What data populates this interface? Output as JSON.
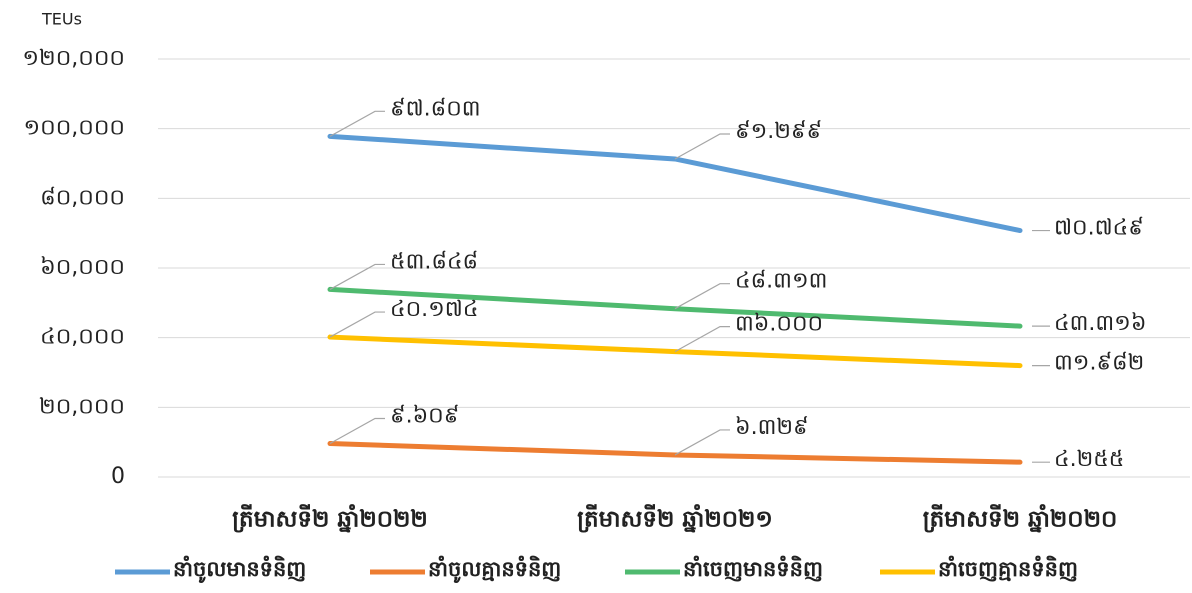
{
  "chart_data": {
    "type": "line",
    "y_label": "TEUs",
    "categories": [
      "ត្រីមាសទី២ ឆ្នាំ២០២២",
      "ត្រីមាសទី២ ឆ្នាំ២០២១",
      "ត្រីមាសទី២ ឆ្នាំ២០២០"
    ],
    "series": [
      {
        "name": "នាំចូលមានទំនិញ",
        "color": "#5b9bd5",
        "values": [
          97803,
          91299,
          70749
        ],
        "value_labels": [
          "៩៧.៨០៣",
          "៩១.២៩៩",
          "៧០.៧៤៩"
        ]
      },
      {
        "name": "នាំចូលគ្មានទំនិញ",
        "color": "#ed7d31",
        "values": [
          9609,
          6329,
          4255
        ],
        "value_labels": [
          "៩.៦០៩",
          "៦.៣២៩",
          "៤.២៥៥"
        ]
      },
      {
        "name": "នាំចេញមានទំនិញ",
        "color": "#4fba6f",
        "values": [
          53848,
          48313,
          43316
        ],
        "value_labels": [
          "៥៣.៨៤៨",
          "៤៨.៣១៣",
          "៤៣.៣១៦"
        ]
      },
      {
        "name": "នាំចេញគ្មានទំនិញ",
        "color": "#ffc000",
        "values": [
          40174,
          36000,
          31982
        ],
        "value_labels": [
          "៤០.១៧៤",
          "៣៦.០០០",
          "៣១.៩៨២"
        ]
      }
    ],
    "ylim": [
      0,
      120000
    ],
    "yticks": [
      {
        "value": 0,
        "label": "0"
      },
      {
        "value": 20000,
        "label": "២០,០០០"
      },
      {
        "value": 40000,
        "label": "៤០,០០០"
      },
      {
        "value": 60000,
        "label": "៦០,០០០"
      },
      {
        "value": 80000,
        "label": "៨០,០០០"
      },
      {
        "value": 100000,
        "label": "១០០,០០០"
      },
      {
        "value": 120000,
        "label": "១២០,០០០"
      }
    ],
    "grid": true,
    "legend": "bottom"
  }
}
